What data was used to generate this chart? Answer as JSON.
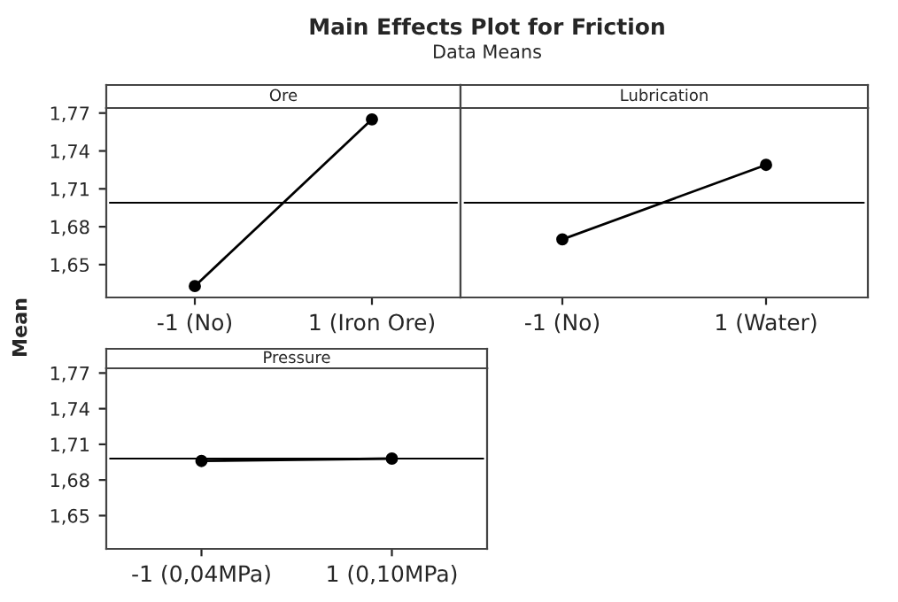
{
  "chart_data": [
    {
      "type": "line",
      "title": "Ore",
      "ylabel": "Mean",
      "annotations": [
        "Main Effects Plot for Friction",
        "Data Means"
      ],
      "categories": [
        "-1 (No)",
        "1 (Iron Ore)"
      ],
      "series": [
        {
          "color": "#000000",
          "values": [
            1.633,
            1.765
          ]
        }
      ],
      "marker": "circle",
      "line_style": "solid",
      "ylim": [
        1.624,
        1.774
      ],
      "yticks": [
        {
          "value": 1.65,
          "label": "1,65"
        },
        {
          "value": 1.68,
          "label": "1,68"
        },
        {
          "value": 1.71,
          "label": "1,71"
        },
        {
          "value": 1.74,
          "label": "1,74"
        },
        {
          "value": 1.77,
          "label": "1,77"
        }
      ],
      "ref_lines": [
        {
          "axis": "y",
          "value": 1.699,
          "color": "#000000"
        }
      ],
      "grid": false
    },
    {
      "type": "line",
      "title": "Lubrication",
      "categories": [
        "-1 (No)",
        "1 (Water)"
      ],
      "series": [
        {
          "color": "#000000",
          "values": [
            1.67,
            1.729
          ]
        }
      ],
      "marker": "circle",
      "line_style": "solid",
      "ylim": [
        1.624,
        1.774
      ],
      "tick_labels": "x",
      "ref_lines": [
        {
          "axis": "y",
          "value": 1.699,
          "color": "#000000"
        }
      ],
      "grid": false
    },
    {
      "type": "line",
      "title": "Pressure",
      "categories": [
        "-1 (0,04MPa)",
        "1 (0,10MPa)"
      ],
      "series": [
        {
          "color": "#000000",
          "values": [
            1.696,
            1.698
          ]
        }
      ],
      "marker": "circle",
      "line_style": "solid",
      "ylim": [
        1.622,
        1.774
      ],
      "yticks": [
        {
          "value": 1.65,
          "label": "1,65"
        },
        {
          "value": 1.68,
          "label": "1,68"
        },
        {
          "value": 1.71,
          "label": "1,71"
        },
        {
          "value": 1.74,
          "label": "1,74"
        },
        {
          "value": 1.77,
          "label": "1,77"
        }
      ],
      "ref_lines": [
        {
          "axis": "y",
          "value": 1.698,
          "color": "#000000"
        }
      ],
      "grid": false
    }
  ]
}
